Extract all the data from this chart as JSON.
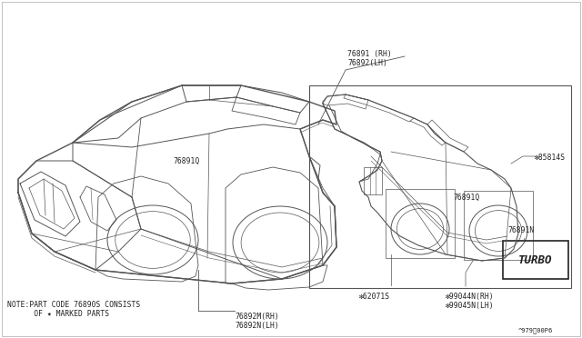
{
  "bg_color": "#ffffff",
  "line_color": "#555555",
  "text_color": "#222222",
  "fig_w": 6.4,
  "fig_h": 3.72,
  "dpi": 100,
  "turbo_text": "TURBO",
  "label_76891RH": "76891 (RH)\n76892(LH)",
  "label_76891Q_big": "76891Q",
  "label_76892M": "76892M(RH)\n76892N(LH)",
  "label_62071S": "❇62071S",
  "label_76891Q_sm": "76891Q",
  "label_85814S": "❇85814S",
  "label_76891N": "76891N",
  "label_99044N": "❇99044N(RH)\n❇99045N(LH)",
  "note_line1": "NOTE:PART CODE 76890S CONSISTS",
  "note_line2": "      OF ✷ MARKED PARTS",
  "page_ref": "^979⁂00P6",
  "fs_label": 5.8,
  "fs_tiny": 5.0
}
